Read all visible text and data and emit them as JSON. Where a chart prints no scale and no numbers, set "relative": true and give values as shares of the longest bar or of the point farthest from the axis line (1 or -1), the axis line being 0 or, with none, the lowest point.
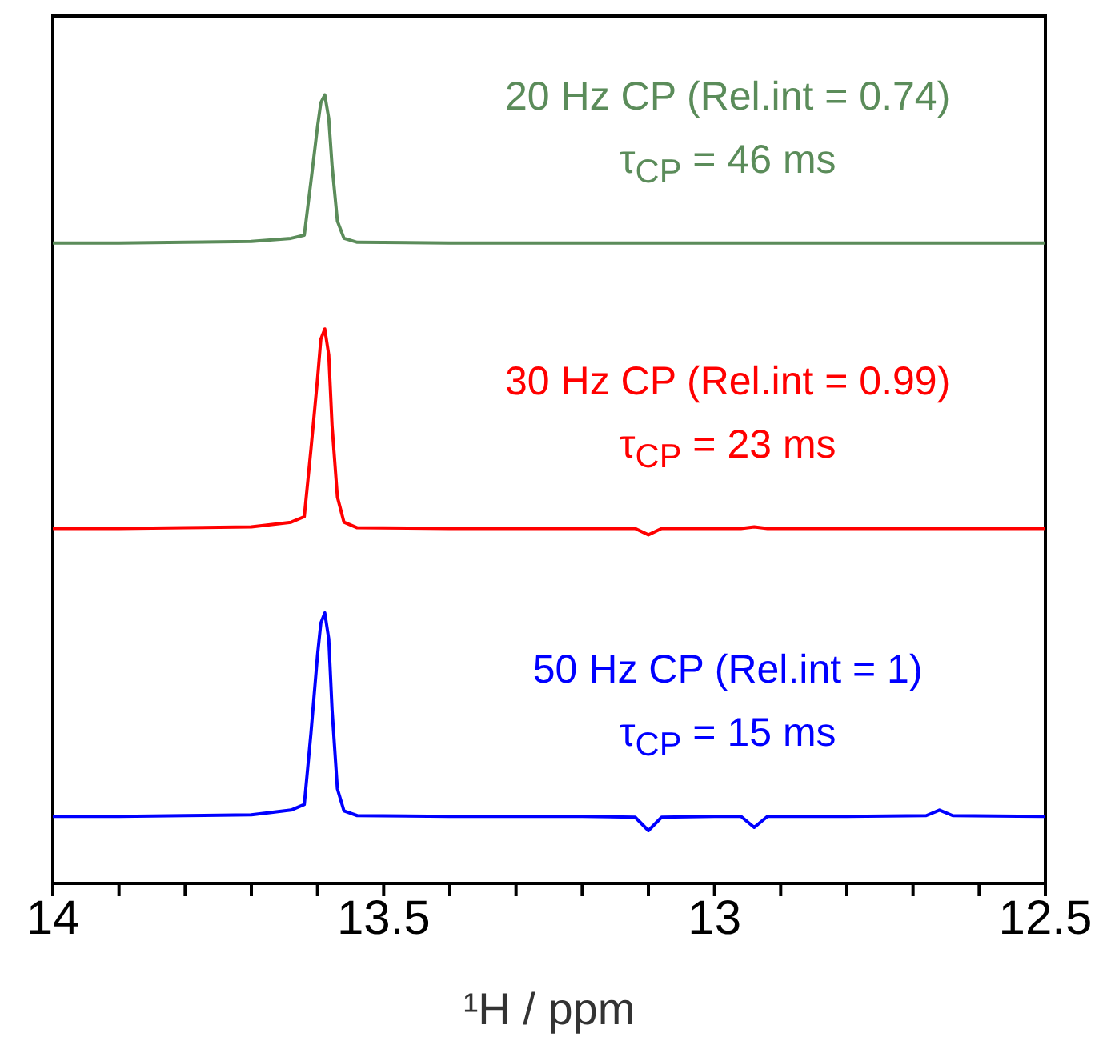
{
  "chart_data": {
    "type": "line",
    "relative": true,
    "xlabel": "¹H / ppm",
    "xlim": [
      14,
      12.5
    ],
    "xticks": [
      14,
      {
        "value": 13.9,
        "label": null
      },
      {
        "value": 13.8,
        "label": null
      },
      {
        "value": 13.7,
        "label": null
      },
      {
        "value": 13.6,
        "label": null
      },
      13.5,
      {
        "value": 13.4,
        "label": null
      },
      {
        "value": 13.3,
        "label": null
      },
      {
        "value": 13.2,
        "label": null
      },
      {
        "value": 13.1,
        "label": null
      },
      13,
      {
        "value": 12.9,
        "label": null
      },
      {
        "value": 12.8,
        "label": null
      },
      {
        "value": 12.7,
        "label": null
      },
      {
        "value": 12.6,
        "label": null
      },
      12.5
    ],
    "x": [
      14,
      13.9,
      13.8,
      13.7,
      13.64,
      13.62,
      13.61,
      13.6,
      13.595,
      13.589,
      13.583,
      13.578,
      13.57,
      13.56,
      13.54,
      13.4,
      13.3,
      13.2,
      13.12,
      13.1,
      13.08,
      13,
      12.96,
      12.94,
      12.92,
      12.8,
      12.68,
      12.66,
      12.64,
      12.5
    ],
    "series": [
      {
        "name": "20 Hz CP (Rel.int = 0.74)",
        "color": "#5b8c5a",
        "values": [
          0.812,
          0.812,
          0.813,
          0.814,
          0.818,
          0.822,
          0.89,
          0.96,
          0.99,
          1,
          0.97,
          0.91,
          0.84,
          0.818,
          0.813,
          0.812,
          0.812,
          0.812,
          0.812,
          0.812,
          0.812,
          0.812,
          0.812,
          0.812,
          0.812,
          0.812,
          0.812,
          0.812,
          0.812,
          0.812
        ]
      },
      {
        "name": "30 Hz CP (Rel.int = 0.99)",
        "color": "#ff0000",
        "values": [
          0.45,
          0.45,
          0.451,
          0.452,
          0.458,
          0.465,
          0.55,
          0.64,
          0.69,
          0.703,
          0.67,
          0.58,
          0.49,
          0.458,
          0.451,
          0.45,
          0.45,
          0.45,
          0.45,
          0.442,
          0.45,
          0.45,
          0.45,
          0.452,
          0.45,
          0.45,
          0.45,
          0.45,
          0.45,
          0.45
        ]
      },
      {
        "name": "50 Hz CP (Rel.int = 1)",
        "color": "#0000ff",
        "values": [
          0.085,
          0.085,
          0.086,
          0.087,
          0.093,
          0.1,
          0.19,
          0.29,
          0.33,
          0.343,
          0.31,
          0.22,
          0.12,
          0.092,
          0.086,
          0.085,
          0.085,
          0.085,
          0.084,
          0.067,
          0.084,
          0.085,
          0.085,
          0.071,
          0.085,
          0.085,
          0.086,
          0.093,
          0.086,
          0.085
        ]
      }
    ],
    "annotations": [
      "τ$_{CP}$ = 46 ms",
      "τ$_{CP}$ = 23 ms",
      "τ$_{CP}$ = 15 ms"
    ]
  }
}
